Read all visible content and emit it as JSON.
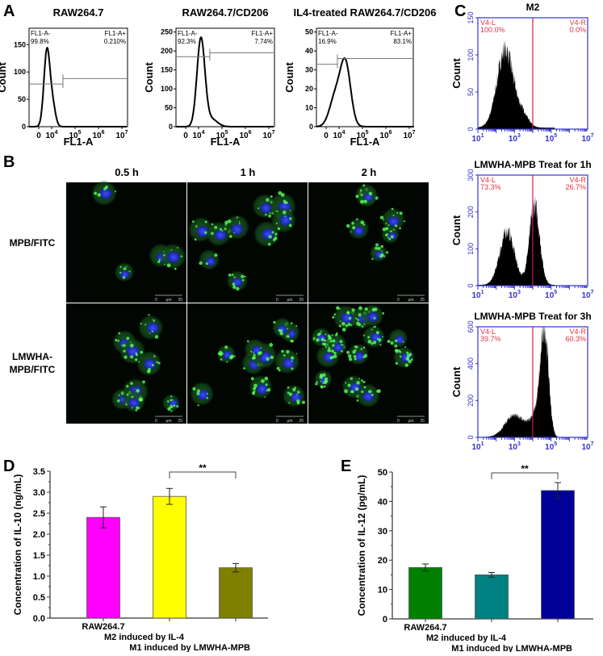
{
  "panel_labels": {
    "a": "A",
    "b": "B",
    "c": "C",
    "d": "D",
    "e": "E"
  },
  "panel_b": {
    "columns": [
      "0.5 h",
      "1 h",
      "2 h"
    ],
    "rows": [
      [
        "MPB/FITC"
      ],
      [
        "LMWHA-",
        "MPB/FITC"
      ]
    ],
    "scale_bar": [
      "0",
      "µm",
      "25"
    ]
  },
  "chart_data": [
    {
      "id": "A1",
      "type": "histogram",
      "title": "RAW264.7",
      "xlabel": "FL1-A",
      "ylabel": "Count",
      "ylim": [
        0,
        180
      ],
      "yticks": [
        "0",
        "50",
        "100",
        "150"
      ],
      "ytick_values": [
        0,
        50,
        100,
        150
      ],
      "xticks": [
        {
          "base": "0",
          "exp": ""
        },
        {
          "base": "10",
          "exp": "4"
        },
        {
          "base": "10",
          "exp": "5"
        },
        {
          "base": "10",
          "exp": "6"
        },
        {
          "base": "10",
          "exp": "7"
        }
      ],
      "gate_left": {
        "label": "FL1-A-",
        "value": "99.8%"
      },
      "gate_right": {
        "label": "FL1-A+",
        "value": "0.210%"
      },
      "gate_boundary_log": 4.48,
      "gate_level": [
        78,
        88
      ],
      "peaks": [
        {
          "center_log": 3.8,
          "sd": 0.13,
          "height": 140
        },
        {
          "center_log": 4.05,
          "sd": 0.12,
          "height": 35
        }
      ]
    },
    {
      "id": "A2",
      "type": "histogram",
      "title": "RAW264.7/CD206",
      "xlabel": "FL1-A",
      "ylabel": "Count",
      "ylim": [
        0,
        260
      ],
      "yticks": [
        "0",
        "50",
        "100",
        "150",
        "200",
        "250"
      ],
      "ytick_values": [
        0,
        50,
        100,
        150,
        200,
        250
      ],
      "xticks": [
        {
          "base": "0",
          "exp": ""
        },
        {
          "base": "10",
          "exp": "4"
        },
        {
          "base": "10",
          "exp": "5"
        },
        {
          "base": "10",
          "exp": "6"
        },
        {
          "base": "10",
          "exp": "7"
        }
      ],
      "gate_left": {
        "label": "FL1-A-",
        "value": "92.3%"
      },
      "gate_right": {
        "label": "FL1-A+",
        "value": "7.74%"
      },
      "gate_boundary_log": 4.48,
      "gate_level": [
        185,
        195
      ],
      "peaks": [
        {
          "center_log": 4.1,
          "sd": 0.17,
          "height": 232
        },
        {
          "center_log": 4.55,
          "sd": 0.25,
          "height": 20
        }
      ]
    },
    {
      "id": "A3",
      "type": "histogram",
      "title": "IL4-treated RAW264.7/CD206",
      "xlabel": "FL1-A",
      "ylabel": "Count",
      "ylim": [
        0,
        52
      ],
      "yticks": [
        "0",
        "10",
        "20",
        "30",
        "40",
        "50"
      ],
      "ytick_values": [
        0,
        10,
        20,
        30,
        40,
        50
      ],
      "xticks": [
        {
          "base": "0",
          "exp": ""
        },
        {
          "base": "10",
          "exp": "4"
        },
        {
          "base": "10",
          "exp": "5"
        },
        {
          "base": "10",
          "exp": "6"
        },
        {
          "base": "10",
          "exp": "7"
        }
      ],
      "gate_left": {
        "label": "FL1-A-",
        "value": "16.9%"
      },
      "gate_right": {
        "label": "FL1-A+",
        "value": "83.1%"
      },
      "gate_boundary_log": 3.93,
      "gate_level": [
        33,
        36
      ],
      "peaks": [
        {
          "center_log": 4.28,
          "sd": 0.22,
          "height": 32
        },
        {
          "center_log": 3.85,
          "sd": 0.25,
          "height": 16
        }
      ]
    },
    {
      "id": "C1",
      "type": "histogram",
      "title": "M2",
      "ylabel": "Count",
      "xlim_log": [
        1,
        7
      ],
      "ylim": [
        0,
        150
      ],
      "yticks": [
        "0",
        "50",
        "100",
        "150"
      ],
      "ytick_values": [
        0,
        50,
        100,
        150
      ],
      "xticks": [
        {
          "base": "10",
          "exp": "1"
        },
        {
          "base": "10",
          "exp": "3"
        },
        {
          "base": "10",
          "exp": "5"
        },
        {
          "base": "10",
          "exp": "7"
        }
      ],
      "marker_log": 4,
      "gate_left": {
        "label": "V4-L",
        "value": "100.0%"
      },
      "gate_right": {
        "label": "V4-R",
        "value": "0.0%"
      },
      "peaks": [
        {
          "center_log": 2.5,
          "sd": 0.45,
          "height": 105
        },
        {
          "center_log": 3.5,
          "sd": 0.3,
          "height": 15
        }
      ]
    },
    {
      "id": "C2",
      "type": "histogram",
      "title": "LMWHA-MPB Treat for 1h",
      "ylabel": "Count",
      "xlim_log": [
        1,
        7
      ],
      "ylim": [
        0,
        300
      ],
      "yticks": [
        "0",
        "100",
        "200",
        "300"
      ],
      "ytick_values": [
        0,
        100,
        200,
        300
      ],
      "xticks": [
        {
          "base": "10",
          "exp": "1"
        },
        {
          "base": "10",
          "exp": "3"
        },
        {
          "base": "10",
          "exp": "5"
        },
        {
          "base": "10",
          "exp": "7"
        }
      ],
      "marker_log": 4,
      "gate_left": {
        "label": "V4-L",
        "value": "73.3%"
      },
      "gate_right": {
        "label": "V4-R",
        "value": "26.7%"
      },
      "peaks": [
        {
          "center_log": 2.6,
          "sd": 0.4,
          "height": 145
        },
        {
          "center_log": 4.1,
          "sd": 0.28,
          "height": 215
        }
      ]
    },
    {
      "id": "C3",
      "type": "histogram",
      "title": "LMWHA-MPB Treat for 3h",
      "ylabel": "Count",
      "xlim_log": [
        1,
        7
      ],
      "ylim": [
        0,
        600
      ],
      "yticks": [
        "0",
        "200",
        "400",
        "600"
      ],
      "ytick_values": [
        0,
        200,
        400,
        600
      ],
      "xticks": [
        {
          "base": "10",
          "exp": "1"
        },
        {
          "base": "10",
          "exp": "3"
        },
        {
          "base": "10",
          "exp": "5"
        },
        {
          "base": "10",
          "exp": "7"
        }
      ],
      "marker_log": 4,
      "gate_left": {
        "label": "V4-L",
        "value": "39.7%"
      },
      "gate_right": {
        "label": "V4-R",
        "value": "60.3%"
      },
      "peaks": [
        {
          "center_log": 3.0,
          "sd": 0.5,
          "height": 120
        },
        {
          "center_log": 4.65,
          "sd": 0.22,
          "height": 540
        },
        {
          "center_log": 4.2,
          "sd": 0.35,
          "height": 120
        }
      ]
    },
    {
      "id": "D",
      "type": "bar",
      "ylabel": "Concentration of IL-10 (ng/mL)",
      "ylim": [
        0,
        3.5
      ],
      "yticks": [
        "0.0",
        "0.5",
        "1.0",
        "1.5",
        "2.0",
        "2.5",
        "3.0",
        "3.5"
      ],
      "ytick_values": [
        0,
        0.5,
        1,
        1.5,
        2,
        2.5,
        3,
        3.5
      ],
      "categories": [
        "RAW264.7",
        "M2 induced by IL-4",
        "M1 induced by LMWHA-MPB"
      ],
      "values": [
        2.4,
        2.9,
        1.2
      ],
      "errors": [
        0.25,
        0.19,
        0.1
      ],
      "colors": [
        "#ff00ff",
        "#ffff00",
        "#808000"
      ],
      "significance": {
        "between": [
          1,
          2
        ],
        "label": "**"
      }
    },
    {
      "id": "E",
      "type": "bar",
      "ylabel": "Concentration of IL-12 (pg/mL)",
      "ylim": [
        0,
        50
      ],
      "yticks": [
        "0",
        "10",
        "20",
        "30",
        "40",
        "50"
      ],
      "ytick_values": [
        0,
        10,
        20,
        30,
        40,
        50
      ],
      "categories": [
        "RAW264.7",
        "M2 induced by IL-4",
        "M1 induced by LMWHA-MPB"
      ],
      "values": [
        17.5,
        15.0,
        43.7
      ],
      "errors": [
        1.2,
        0.8,
        2.7
      ],
      "colors": [
        "#008000",
        "#008080",
        "#000099"
      ],
      "significance": {
        "between": [
          1,
          2
        ],
        "label": "**"
      }
    }
  ]
}
